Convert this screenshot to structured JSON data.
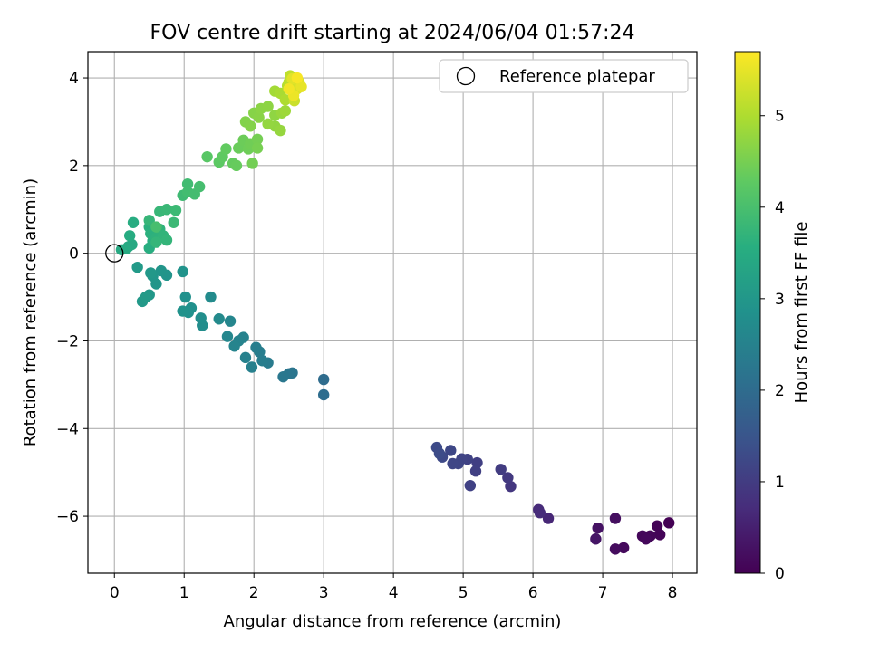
{
  "chart_data": {
    "type": "scatter",
    "title": "FOV centre drift starting at 2024/06/04 01:57:24",
    "xlabel": "Angular distance from reference (arcmin)",
    "ylabel": "Rotation from reference (arcmin)",
    "xlim": [
      -0.38,
      8.35
    ],
    "ylim": [
      -7.3,
      4.6
    ],
    "xticks": [
      0,
      1,
      2,
      3,
      4,
      5,
      6,
      7,
      8
    ],
    "yticks": [
      4,
      2,
      0,
      -2,
      -4,
      -6
    ],
    "grid": true,
    "legend": {
      "placement": "top-right",
      "entries": [
        "Reference platepar"
      ]
    },
    "reference_point": {
      "x": 0,
      "y": 0
    },
    "colorbar": {
      "label": "Hours from first FF file",
      "range": [
        0,
        5.7
      ],
      "ticks": [
        0,
        1,
        2,
        3,
        4,
        5
      ],
      "colormap": "viridis"
    },
    "points": [
      {
        "x": 7.95,
        "y": -6.15,
        "c": 0.0
      },
      {
        "x": 7.78,
        "y": -6.22,
        "c": 0.03
      },
      {
        "x": 7.82,
        "y": -6.42,
        "c": 0.05
      },
      {
        "x": 7.68,
        "y": -6.45,
        "c": 0.08
      },
      {
        "x": 7.57,
        "y": -6.45,
        "c": 0.1
      },
      {
        "x": 7.62,
        "y": -6.52,
        "c": 0.12
      },
      {
        "x": 7.3,
        "y": -6.72,
        "c": 0.15
      },
      {
        "x": 7.18,
        "y": -6.75,
        "c": 0.18
      },
      {
        "x": 7.18,
        "y": -6.05,
        "c": 0.22
      },
      {
        "x": 6.93,
        "y": -6.27,
        "c": 0.28
      },
      {
        "x": 6.9,
        "y": -6.52,
        "c": 0.32
      },
      {
        "x": 6.22,
        "y": -6.05,
        "c": 0.62
      },
      {
        "x": 6.08,
        "y": -5.85,
        "c": 0.68
      },
      {
        "x": 6.1,
        "y": -5.92,
        "c": 0.7
      },
      {
        "x": 5.68,
        "y": -5.32,
        "c": 0.9
      },
      {
        "x": 5.64,
        "y": -5.12,
        "c": 0.95
      },
      {
        "x": 5.54,
        "y": -4.93,
        "c": 1.0
      },
      {
        "x": 5.2,
        "y": -4.78,
        "c": 1.05
      },
      {
        "x": 5.18,
        "y": -4.97,
        "c": 1.08
      },
      {
        "x": 5.1,
        "y": -5.3,
        "c": 1.1
      },
      {
        "x": 5.06,
        "y": -4.7,
        "c": 1.12
      },
      {
        "x": 4.98,
        "y": -4.69,
        "c": 1.15
      },
      {
        "x": 4.93,
        "y": -4.8,
        "c": 1.18
      },
      {
        "x": 4.85,
        "y": -4.8,
        "c": 1.2
      },
      {
        "x": 4.82,
        "y": -4.5,
        "c": 1.22
      },
      {
        "x": 4.7,
        "y": -4.65,
        "c": 1.25
      },
      {
        "x": 4.62,
        "y": -4.43,
        "c": 1.28
      },
      {
        "x": 4.66,
        "y": -4.57,
        "c": 1.3
      },
      {
        "x": 3.0,
        "y": -2.88,
        "c": 2.0
      },
      {
        "x": 3.0,
        "y": -3.23,
        "c": 2.02
      },
      {
        "x": 2.55,
        "y": -2.73,
        "c": 2.2
      },
      {
        "x": 2.5,
        "y": -2.75,
        "c": 2.22
      },
      {
        "x": 2.42,
        "y": -2.82,
        "c": 2.25
      },
      {
        "x": 2.2,
        "y": -2.5,
        "c": 2.35
      },
      {
        "x": 2.12,
        "y": -2.45,
        "c": 2.38
      },
      {
        "x": 2.08,
        "y": -2.25,
        "c": 2.4
      },
      {
        "x": 2.03,
        "y": -2.15,
        "c": 2.42
      },
      {
        "x": 1.97,
        "y": -2.6,
        "c": 2.45
      },
      {
        "x": 1.88,
        "y": -2.38,
        "c": 2.48
      },
      {
        "x": 1.85,
        "y": -1.92,
        "c": 2.5
      },
      {
        "x": 1.78,
        "y": -2.0,
        "c": 2.52
      },
      {
        "x": 1.72,
        "y": -2.12,
        "c": 2.55
      },
      {
        "x": 1.66,
        "y": -1.55,
        "c": 2.6
      },
      {
        "x": 1.62,
        "y": -1.9,
        "c": 2.62
      },
      {
        "x": 1.5,
        "y": -1.5,
        "c": 2.68
      },
      {
        "x": 1.38,
        "y": -1.0,
        "c": 2.72
      },
      {
        "x": 1.26,
        "y": -1.65,
        "c": 2.75
      },
      {
        "x": 1.24,
        "y": -1.48,
        "c": 2.78
      },
      {
        "x": 1.1,
        "y": -1.25,
        "c": 2.82
      },
      {
        "x": 1.06,
        "y": -1.35,
        "c": 2.84
      },
      {
        "x": 1.02,
        "y": -1.0,
        "c": 2.86
      },
      {
        "x": 0.98,
        "y": -1.32,
        "c": 2.88
      },
      {
        "x": 0.98,
        "y": -0.42,
        "c": 2.9
      },
      {
        "x": 0.75,
        "y": -0.5,
        "c": 2.92
      },
      {
        "x": 0.67,
        "y": -0.4,
        "c": 2.94
      },
      {
        "x": 0.6,
        "y": -0.7,
        "c": 2.96
      },
      {
        "x": 0.55,
        "y": -0.52,
        "c": 2.98
      },
      {
        "x": 0.5,
        "y": -0.95,
        "c": 3.0
      },
      {
        "x": 0.52,
        "y": -0.45,
        "c": 3.02
      },
      {
        "x": 0.4,
        "y": -1.1,
        "c": 3.04
      },
      {
        "x": 0.33,
        "y": -0.32,
        "c": 3.06
      },
      {
        "x": 0.45,
        "y": -1.0,
        "c": 3.08
      },
      {
        "x": 0.2,
        "y": 0.15,
        "c": 3.4
      },
      {
        "x": 0.25,
        "y": 0.2,
        "c": 3.42
      },
      {
        "x": 0.1,
        "y": 0.08,
        "c": 3.45
      },
      {
        "x": 0.17,
        "y": 0.1,
        "c": 3.47
      },
      {
        "x": 0.22,
        "y": 0.4,
        "c": 3.5
      },
      {
        "x": 0.27,
        "y": 0.7,
        "c": 3.52
      },
      {
        "x": 0.5,
        "y": 0.12,
        "c": 3.55
      },
      {
        "x": 0.55,
        "y": 0.28,
        "c": 3.57
      },
      {
        "x": 0.5,
        "y": 0.6,
        "c": 3.6
      },
      {
        "x": 0.52,
        "y": 0.45,
        "c": 3.62
      },
      {
        "x": 0.6,
        "y": 0.35,
        "c": 3.65
      },
      {
        "x": 0.65,
        "y": 0.55,
        "c": 3.67
      },
      {
        "x": 0.7,
        "y": 0.4,
        "c": 3.7
      },
      {
        "x": 0.75,
        "y": 0.3,
        "c": 3.72
      },
      {
        "x": 0.6,
        "y": 0.25,
        "c": 3.74
      },
      {
        "x": 0.5,
        "y": 0.75,
        "c": 3.76
      },
      {
        "x": 0.65,
        "y": 0.95,
        "c": 3.78
      },
      {
        "x": 0.75,
        "y": 1.0,
        "c": 3.8
      },
      {
        "x": 0.85,
        "y": 0.7,
        "c": 3.82
      },
      {
        "x": 0.88,
        "y": 0.98,
        "c": 3.84
      },
      {
        "x": 0.98,
        "y": 1.32,
        "c": 3.86
      },
      {
        "x": 1.05,
        "y": 1.58,
        "c": 3.9
      },
      {
        "x": 1.05,
        "y": 1.4,
        "c": 3.92
      },
      {
        "x": 1.15,
        "y": 1.35,
        "c": 3.94
      },
      {
        "x": 1.22,
        "y": 1.52,
        "c": 3.96
      },
      {
        "x": 0.6,
        "y": 0.6,
        "c": 3.98
      },
      {
        "x": 1.33,
        "y": 2.2,
        "c": 4.2
      },
      {
        "x": 1.5,
        "y": 2.08,
        "c": 4.25
      },
      {
        "x": 1.55,
        "y": 2.2,
        "c": 4.27
      },
      {
        "x": 1.6,
        "y": 2.38,
        "c": 4.3
      },
      {
        "x": 1.7,
        "y": 2.05,
        "c": 4.33
      },
      {
        "x": 1.75,
        "y": 2.0,
        "c": 4.35
      },
      {
        "x": 1.78,
        "y": 2.4,
        "c": 4.38
      },
      {
        "x": 1.85,
        "y": 2.58,
        "c": 4.4
      },
      {
        "x": 1.92,
        "y": 2.38,
        "c": 4.42
      },
      {
        "x": 1.95,
        "y": 2.5,
        "c": 4.44
      },
      {
        "x": 1.98,
        "y": 2.05,
        "c": 4.46
      },
      {
        "x": 2.05,
        "y": 2.6,
        "c": 4.48
      },
      {
        "x": 2.05,
        "y": 2.4,
        "c": 4.5
      },
      {
        "x": 1.88,
        "y": 3.0,
        "c": 4.6
      },
      {
        "x": 1.95,
        "y": 2.9,
        "c": 4.62
      },
      {
        "x": 2.0,
        "y": 3.2,
        "c": 4.64
      },
      {
        "x": 2.07,
        "y": 3.1,
        "c": 4.66
      },
      {
        "x": 2.1,
        "y": 3.3,
        "c": 4.68
      },
      {
        "x": 2.2,
        "y": 3.35,
        "c": 4.7
      },
      {
        "x": 2.3,
        "y": 3.15,
        "c": 4.72
      },
      {
        "x": 2.3,
        "y": 2.9,
        "c": 4.74
      },
      {
        "x": 2.2,
        "y": 2.95,
        "c": 4.76
      },
      {
        "x": 2.38,
        "y": 2.8,
        "c": 4.78
      },
      {
        "x": 2.4,
        "y": 3.2,
        "c": 4.8
      },
      {
        "x": 2.45,
        "y": 3.25,
        "c": 4.85
      },
      {
        "x": 2.3,
        "y": 3.7,
        "c": 4.9
      },
      {
        "x": 2.38,
        "y": 3.65,
        "c": 4.95
      },
      {
        "x": 2.45,
        "y": 3.5,
        "c": 5.0
      },
      {
        "x": 2.48,
        "y": 3.82,
        "c": 5.05
      },
      {
        "x": 2.5,
        "y": 3.9,
        "c": 5.1
      },
      {
        "x": 2.52,
        "y": 4.05,
        "c": 5.15
      },
      {
        "x": 2.55,
        "y": 3.7,
        "c": 5.2
      },
      {
        "x": 2.58,
        "y": 3.48,
        "c": 5.25
      },
      {
        "x": 2.6,
        "y": 3.85,
        "c": 5.3
      },
      {
        "x": 2.62,
        "y": 3.75,
        "c": 5.35
      },
      {
        "x": 2.65,
        "y": 3.9,
        "c": 5.4
      },
      {
        "x": 2.55,
        "y": 3.98,
        "c": 5.45
      },
      {
        "x": 2.68,
        "y": 3.8,
        "c": 5.5
      },
      {
        "x": 2.57,
        "y": 3.6,
        "c": 5.55
      },
      {
        "x": 2.5,
        "y": 3.75,
        "c": 5.6
      },
      {
        "x": 2.62,
        "y": 4.0,
        "c": 5.65
      }
    ]
  }
}
